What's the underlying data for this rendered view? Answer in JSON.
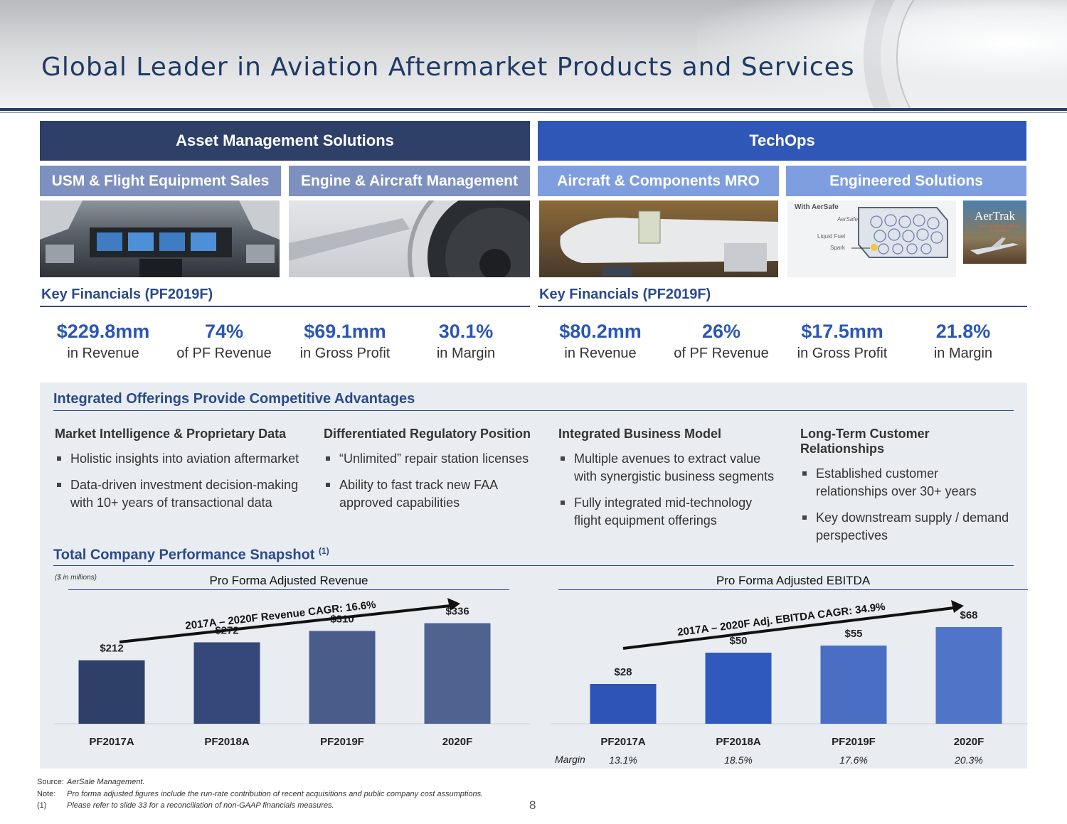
{
  "title": "Global Leader in Aviation Aftermarket Products and Services",
  "segments": {
    "asset": {
      "label": "Asset Management Solutions",
      "subs": [
        "USM & Flight Equipment Sales",
        "Engine & Aircraft Management"
      ],
      "key_financials_title": "Key Financials (PF2019F)",
      "metrics": [
        {
          "value": "$229.8mm",
          "label": "in Revenue"
        },
        {
          "value": "74%",
          "label": "of PF Revenue"
        },
        {
          "value": "$69.1mm",
          "label": "in Gross Profit"
        },
        {
          "value": "30.1%",
          "label": "in Margin"
        }
      ]
    },
    "techops": {
      "label": "TechOps",
      "subs": [
        "Aircraft & Components MRO",
        "Engineered Solutions"
      ],
      "key_financials_title": "Key Financials (PF2019F)",
      "metrics": [
        {
          "value": "$80.2mm",
          "label": "in Revenue"
        },
        {
          "value": "26%",
          "label": "of PF Revenue"
        },
        {
          "value": "$17.5mm",
          "label": "in Gross Profit"
        },
        {
          "value": "21.8%",
          "label": "in Margin"
        }
      ]
    }
  },
  "engineered_image": {
    "with_aersafe": "With AerSafe",
    "aersafe": "AerSafe",
    "liquid_fuel": "Liquid Fuel",
    "spark": "Spark",
    "aertrak": "AerTrak",
    "aertrak_tag": "The Cost-Effective ADS-B Out Solution"
  },
  "integrated": {
    "title": "Integrated Offerings Provide Competitive Advantages",
    "columns": [
      {
        "heading": "Market Intelligence & Proprietary Data",
        "bullets": [
          "Holistic insights into aviation aftermarket",
          "Data-driven investment decision-making with 10+ years of transactional data"
        ]
      },
      {
        "heading": "Differentiated Regulatory Position",
        "bullets": [
          "“Unlimited” repair station licenses",
          "Ability to fast track new FAA approved capabilities"
        ]
      },
      {
        "heading": "Integrated Business Model",
        "bullets": [
          "Multiple avenues to extract value with synergistic business segments",
          "Fully integrated mid-technology flight equipment offerings"
        ]
      },
      {
        "heading": "Long-Term Customer Relationships",
        "bullets": [
          "Established customer relationships over 30+ years",
          "Key downstream supply / demand perspectives"
        ]
      }
    ]
  },
  "snapshot": {
    "title": "Total Company Performance Snapshot",
    "title_sup": "(1)",
    "units_note": "($ in millions)",
    "margin_label": "Margin"
  },
  "chart_data": [
    {
      "type": "bar",
      "title": "Pro Forma Adjusted Revenue",
      "categories": [
        "PF2017A",
        "PF2018A",
        "PF2019F",
        "2020F"
      ],
      "values": [
        212,
        272,
        310,
        336
      ],
      "value_labels": [
        "$212",
        "$272",
        "$310",
        "$336"
      ],
      "annotation": "2017A – 2020F Revenue CAGR: 16.6%",
      "colors": [
        "#2e3f68",
        "#34497a",
        "#4a5d8a",
        "#4f6390"
      ],
      "ylim": [
        0,
        380
      ]
    },
    {
      "type": "bar",
      "title": "Pro Forma Adjusted EBITDA",
      "categories": [
        "PF2017A",
        "PF2018A",
        "PF2019F",
        "2020F"
      ],
      "values": [
        28,
        50,
        55,
        68
      ],
      "value_labels": [
        "$28",
        "$50",
        "$55",
        "$68"
      ],
      "margins": [
        "13.1%",
        "18.5%",
        "17.6%",
        "20.3%"
      ],
      "annotation": "2017A – 2020F Adj. EBITDA CAGR: 34.9%",
      "colors": [
        "#2e54b8",
        "#3059bd",
        "#4a6ec4",
        "#4f74c8"
      ],
      "ylim": [
        0,
        80
      ]
    }
  ],
  "footer": {
    "source_key": "Source:",
    "source": "AerSale Management.",
    "note_key": "Note:",
    "note": "Pro forma adjusted figures include the run-rate contribution of recent acquisitions and public company cost assumptions.",
    "fn_key": "(1)",
    "fn": "Please refer to slide 33 for a reconciliation of non-GAAP financials measures."
  },
  "page_number": "8",
  "colors": {
    "navy": "#2e3f68",
    "blue": "#2f57b8",
    "sub_asset": "#7d90c0",
    "sub_tech": "#7f9ee0",
    "text_blue": "#2a4a8a"
  }
}
